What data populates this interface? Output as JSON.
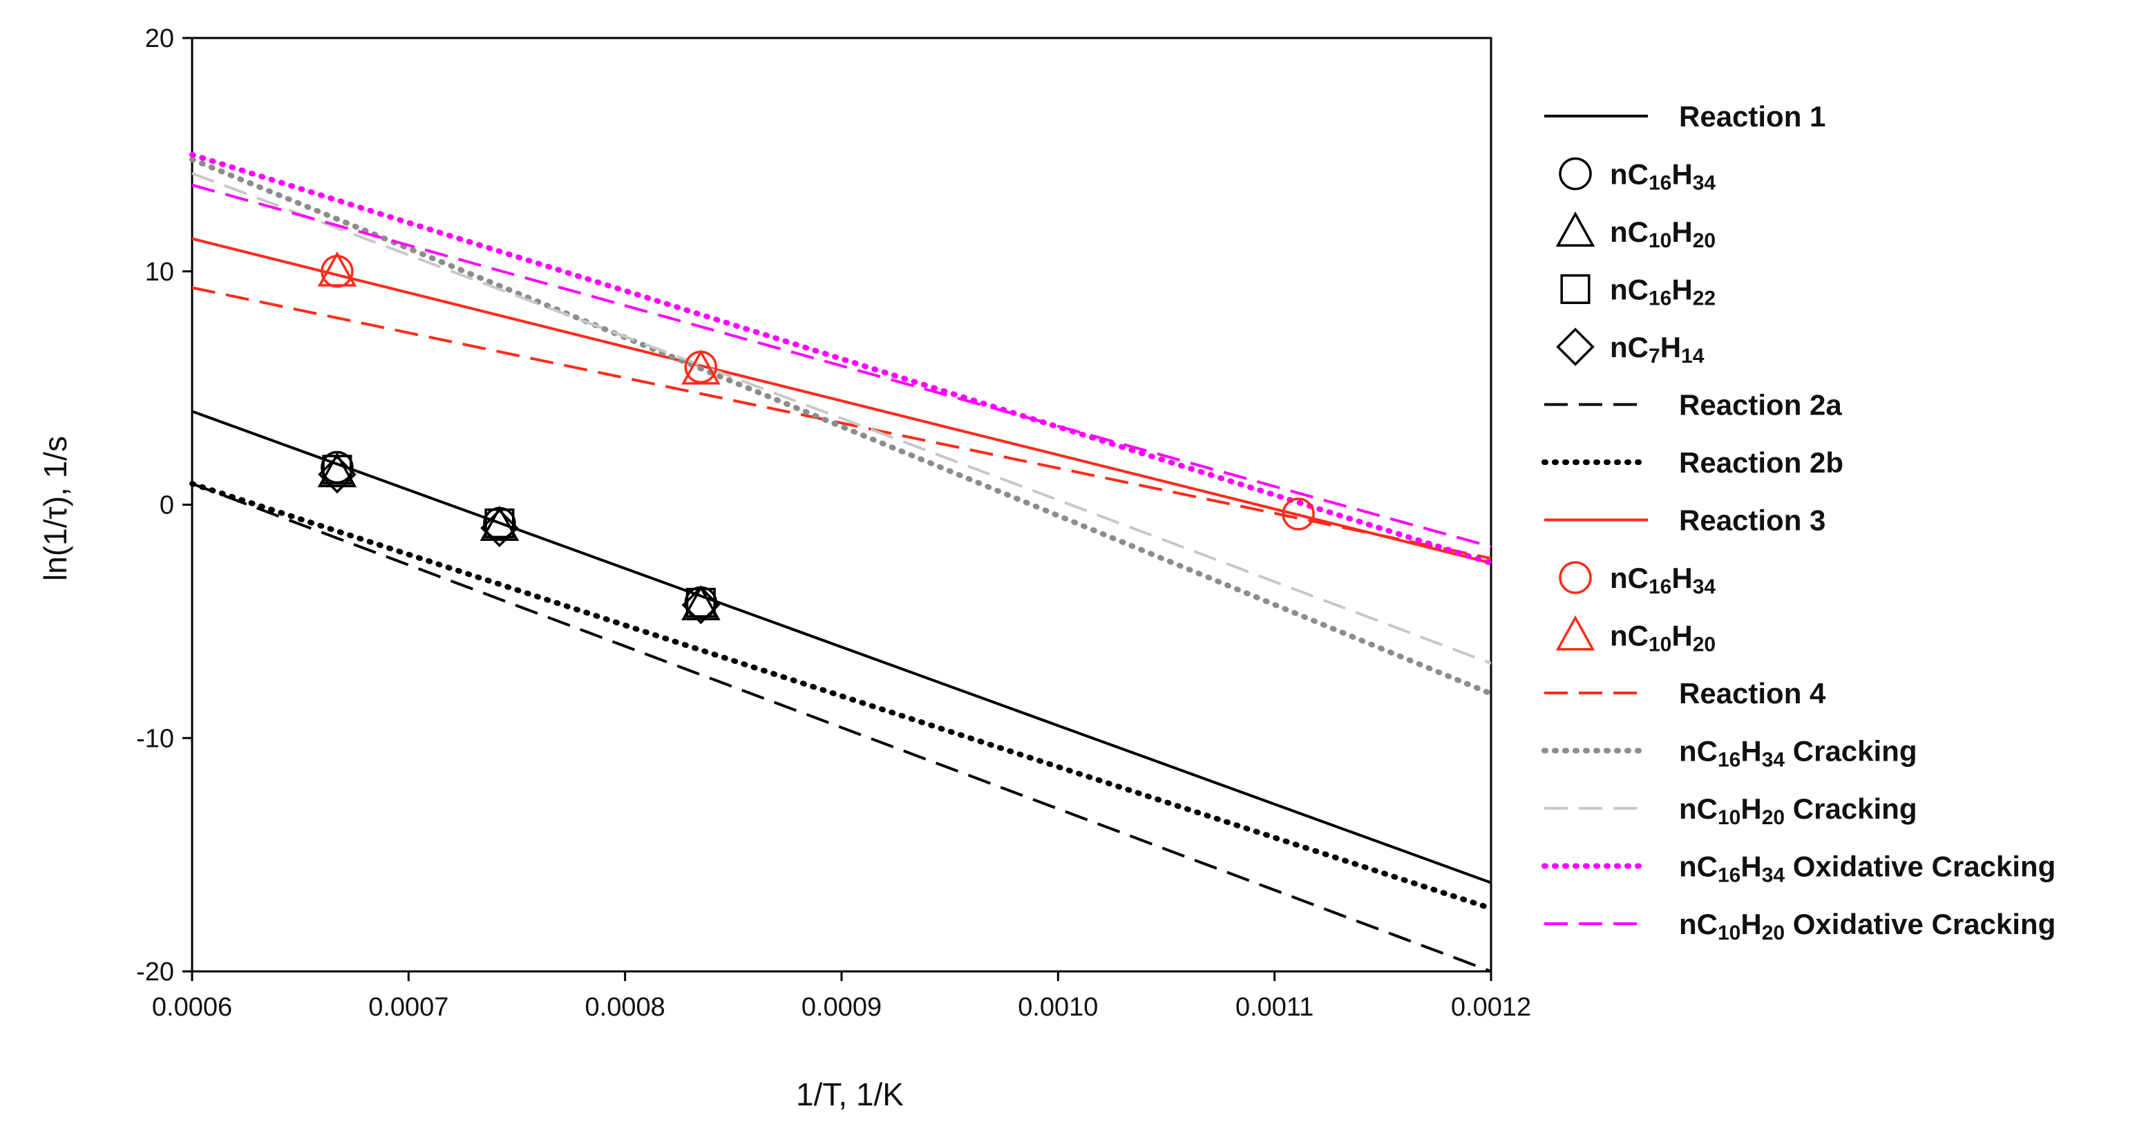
{
  "chart_data": {
    "type": "line",
    "xlabel": "1/T, 1/K",
    "ylabel": "ln(1/τ), 1/s",
    "xlim": [
      0.0006,
      0.0012
    ],
    "ylim": [
      -20,
      20
    ],
    "x_ticks": [
      0.0006,
      0.0007,
      0.0008,
      0.0009,
      0.001,
      0.0011,
      0.0012
    ],
    "x_tick_labels": [
      "0.0006",
      "0.0007",
      "0.0008",
      "0.0009",
      "0.0010",
      "0.0011",
      "0.0012"
    ],
    "y_ticks": [
      -20,
      -10,
      0,
      10,
      20
    ],
    "y_tick_labels": [
      "-20",
      "-10",
      "0",
      "10",
      "20"
    ],
    "legend_position": "right",
    "series": [
      {
        "name": "Reaction 1",
        "label_parts": [
          [
            "Reaction 1",
            ""
          ]
        ],
        "kind": "line",
        "color": "#000000",
        "style": "solid",
        "x": [
          0.0006,
          0.0012
        ],
        "y": [
          4.0,
          -16.2
        ]
      },
      {
        "name": "nC16H34",
        "label_parts": [
          [
            "nC",
            ""
          ],
          [
            "16",
            "sub"
          ],
          [
            "H",
            ""
          ],
          [
            "34",
            "sub"
          ]
        ],
        "kind": "marker",
        "marker": "circle",
        "color": "#000000",
        "x": [
          0.000667,
          0.000742,
          0.000835
        ],
        "y": [
          1.6,
          -0.8,
          -4.2
        ]
      },
      {
        "name": "nC10H20",
        "label_parts": [
          [
            "nC",
            ""
          ],
          [
            "10",
            "sub"
          ],
          [
            "H",
            ""
          ],
          [
            "20",
            "sub"
          ]
        ],
        "kind": "marker",
        "marker": "triangle",
        "color": "#000000",
        "x": [
          0.000667,
          0.000742,
          0.000835
        ],
        "y": [
          1.4,
          -0.9,
          -4.3
        ]
      },
      {
        "name": "nC16H22",
        "label_parts": [
          [
            "nC",
            ""
          ],
          [
            "16",
            "sub"
          ],
          [
            "H",
            ""
          ],
          [
            "22",
            "sub"
          ]
        ],
        "kind": "marker",
        "marker": "square",
        "color": "#000000",
        "x": [
          0.000667,
          0.000742,
          0.000835
        ],
        "y": [
          1.5,
          -0.8,
          -4.2
        ]
      },
      {
        "name": "nC7H14",
        "label_parts": [
          [
            "nC",
            ""
          ],
          [
            "7",
            "sub"
          ],
          [
            "H",
            ""
          ],
          [
            "14",
            "sub"
          ]
        ],
        "kind": "marker",
        "marker": "diamond",
        "color": "#000000",
        "x": [
          0.000667,
          0.000742,
          0.000835
        ],
        "y": [
          1.3,
          -1.0,
          -4.3
        ]
      },
      {
        "name": "Reaction 2a",
        "label_parts": [
          [
            "Reaction 2a",
            ""
          ]
        ],
        "kind": "line",
        "color": "#000000",
        "style": "dashed",
        "x": [
          0.0006,
          0.0012
        ],
        "y": [
          0.9,
          -20.0
        ]
      },
      {
        "name": "Reaction 2b",
        "label_parts": [
          [
            "Reaction 2b",
            ""
          ]
        ],
        "kind": "line",
        "color": "#000000",
        "style": "dotted",
        "x": [
          0.0006,
          0.0012
        ],
        "y": [
          0.9,
          -17.3
        ]
      },
      {
        "name": "Reaction 3",
        "label_parts": [
          [
            "Reaction 3",
            ""
          ]
        ],
        "kind": "line",
        "color": "#ff2a1a",
        "style": "solid",
        "x": [
          0.0006,
          0.0012
        ],
        "y": [
          11.4,
          -2.5
        ]
      },
      {
        "name": "nC16H34",
        "label_parts": [
          [
            "nC",
            ""
          ],
          [
            "16",
            "sub"
          ],
          [
            "H",
            ""
          ],
          [
            "34",
            "sub"
          ]
        ],
        "kind": "marker",
        "marker": "circle",
        "color": "#ff2a1a",
        "x": [
          0.000667,
          0.000835,
          0.001111
        ],
        "y": [
          10.0,
          5.9,
          -0.4
        ]
      },
      {
        "name": "nC10H20",
        "label_parts": [
          [
            "nC",
            ""
          ],
          [
            "10",
            "sub"
          ],
          [
            "H",
            ""
          ],
          [
            "20",
            "sub"
          ]
        ],
        "kind": "marker",
        "marker": "triangle",
        "color": "#ff2a1a",
        "x": [
          0.000667,
          0.000835
        ],
        "y": [
          10.0,
          5.8
        ]
      },
      {
        "name": "Reaction 4",
        "label_parts": [
          [
            "Reaction 4",
            ""
          ]
        ],
        "kind": "line",
        "color": "#ff2a1a",
        "style": "dashed",
        "x": [
          0.0006,
          0.0012
        ],
        "y": [
          9.3,
          -2.3
        ]
      },
      {
        "name": "nC16H34 Cracking",
        "label_parts": [
          [
            "nC",
            ""
          ],
          [
            "16",
            "sub"
          ],
          [
            "H",
            ""
          ],
          [
            "34",
            "sub"
          ],
          [
            " Cracking",
            ""
          ]
        ],
        "kind": "line",
        "color": "#8c8c8c",
        "style": "dotted",
        "x": [
          0.0006,
          0.0012
        ],
        "y": [
          14.8,
          -8.1
        ]
      },
      {
        "name": "nC10H20 Cracking",
        "label_parts": [
          [
            "nC",
            ""
          ],
          [
            "10",
            "sub"
          ],
          [
            "H",
            ""
          ],
          [
            "20",
            "sub"
          ],
          [
            " Cracking",
            ""
          ]
        ],
        "kind": "line",
        "color": "#c8c8c8",
        "style": "dashed",
        "x": [
          0.0006,
          0.0012
        ],
        "y": [
          14.2,
          -6.8
        ]
      },
      {
        "name": "nC16H34 Oxidative Cracking",
        "label_parts": [
          [
            "nC",
            ""
          ],
          [
            "16",
            "sub"
          ],
          [
            "H",
            ""
          ],
          [
            "34",
            "sub"
          ],
          [
            " Oxidative Cracking",
            ""
          ]
        ],
        "kind": "line",
        "color": "#ff00ff",
        "style": "dotted",
        "x": [
          0.0006,
          0.0012
        ],
        "y": [
          15.0,
          -2.5
        ]
      },
      {
        "name": "nC10H20 Oxidative Cracking",
        "label_parts": [
          [
            "nC",
            ""
          ],
          [
            "10",
            "sub"
          ],
          [
            "H",
            ""
          ],
          [
            "20",
            "sub"
          ],
          [
            " Oxidative Cracking",
            ""
          ]
        ],
        "kind": "line",
        "color": "#ff00ff",
        "style": "dashed",
        "x": [
          0.0006,
          0.0012
        ],
        "y": [
          13.7,
          -1.8
        ]
      }
    ]
  }
}
